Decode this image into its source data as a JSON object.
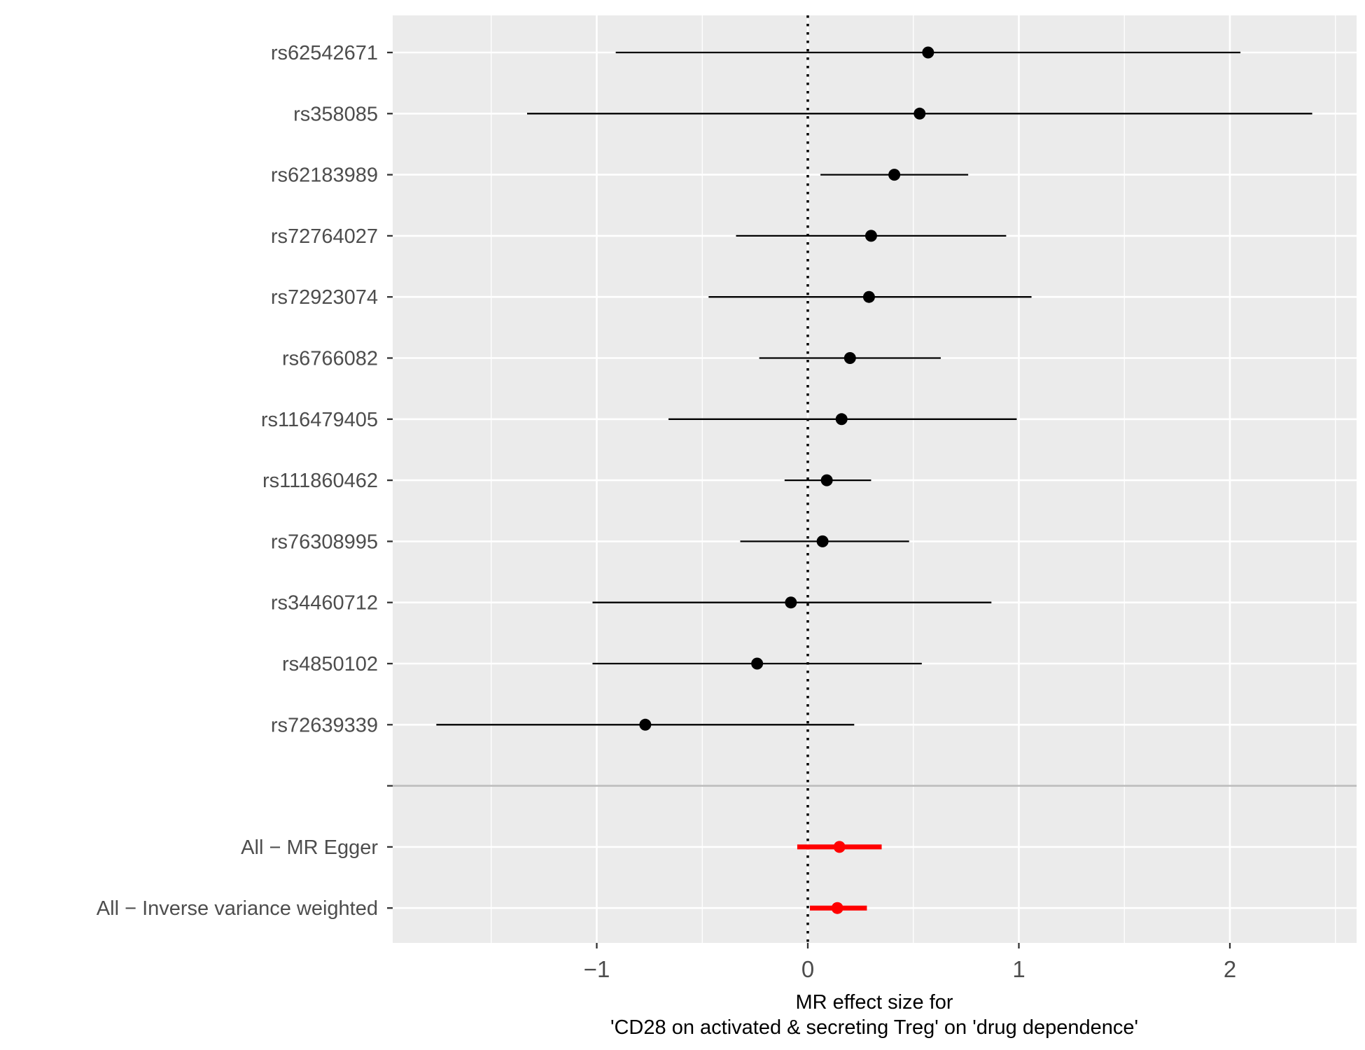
{
  "chart_data": {
    "type": "forest",
    "xlabel_lines": [
      "MR effect size for",
      "'CD28 on activated & secreting Treg' on 'drug dependence'"
    ],
    "xlim": [
      -1.95,
      2.6
    ],
    "xticks": [
      -1,
      0,
      1,
      2
    ],
    "xtick_labels": [
      "−1",
      "0",
      "1",
      "2"
    ],
    "reference_line": 0,
    "grid": true,
    "snps": [
      {
        "label": "rs62542671",
        "estimate": 0.57,
        "lower": -0.91,
        "upper": 2.05
      },
      {
        "label": "rs358085",
        "estimate": 0.53,
        "lower": -1.33,
        "upper": 2.39
      },
      {
        "label": "rs62183989",
        "estimate": 0.41,
        "lower": 0.06,
        "upper": 0.76
      },
      {
        "label": "rs72764027",
        "estimate": 0.3,
        "lower": -0.34,
        "upper": 0.94
      },
      {
        "label": "rs72923074",
        "estimate": 0.29,
        "lower": -0.47,
        "upper": 1.06
      },
      {
        "label": "rs6766082",
        "estimate": 0.2,
        "lower": -0.23,
        "upper": 0.63
      },
      {
        "label": "rs116479405",
        "estimate": 0.16,
        "lower": -0.66,
        "upper": 0.99
      },
      {
        "label": "rs111860462",
        "estimate": 0.09,
        "lower": -0.11,
        "upper": 0.3
      },
      {
        "label": "rs76308995",
        "estimate": 0.07,
        "lower": -0.32,
        "upper": 0.48
      },
      {
        "label": "rs34460712",
        "estimate": -0.08,
        "lower": -1.02,
        "upper": 0.87
      },
      {
        "label": "rs4850102",
        "estimate": -0.24,
        "lower": -1.02,
        "upper": 0.54
      },
      {
        "label": "rs72639339",
        "estimate": -0.77,
        "lower": -1.76,
        "upper": 0.22
      }
    ],
    "summaries": [
      {
        "label": "All − MR Egger",
        "estimate": 0.15,
        "lower": -0.05,
        "upper": 0.35
      },
      {
        "label": "All − Inverse variance weighted",
        "estimate": 0.14,
        "lower": 0.01,
        "upper": 0.28
      }
    ],
    "colors": {
      "panel": "#ebebeb",
      "grid": "#ffffff",
      "snp": "#000000",
      "summary": "#ff0000",
      "separator": "#bdbdbd",
      "label": "#4d4d4d"
    }
  }
}
